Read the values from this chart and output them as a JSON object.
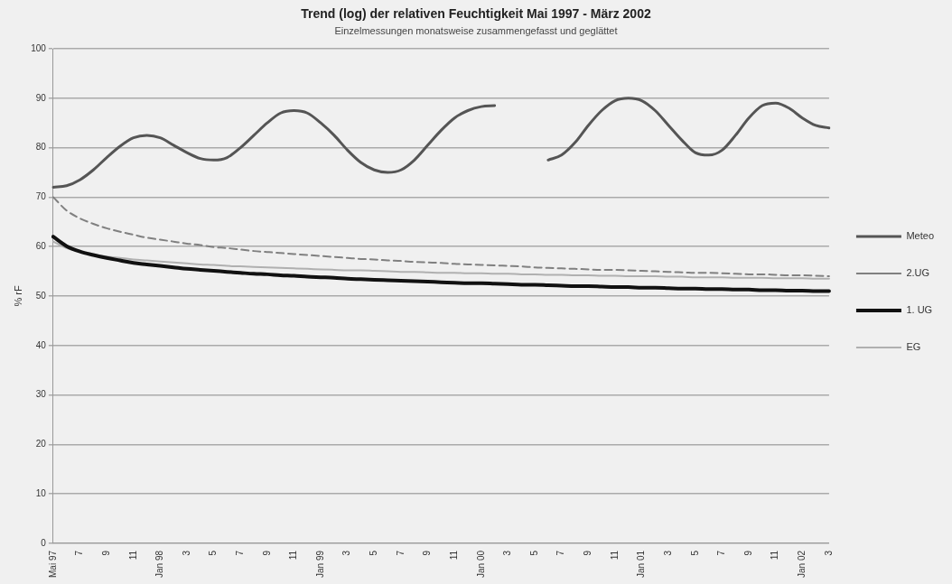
{
  "chart_data": {
    "type": "line",
    "title": "Trend (log) der relativen Feuchtigkeit Mai 1997 - März 2002",
    "subtitle": "Einzelmessungen monatsweise zusammengefasst und geglättet",
    "ylabel": "% rF",
    "categories": [
      "Mai 97",
      null,
      "7",
      null,
      "9",
      null,
      "11",
      null,
      "Jan 98",
      null,
      "3",
      null,
      "5",
      null,
      "7",
      null,
      "9",
      null,
      "11",
      null,
      "Jan 99",
      null,
      "3",
      null,
      "5",
      null,
      "7",
      null,
      "9",
      null,
      "11",
      null,
      "Jan 00",
      null,
      "3",
      null,
      "5",
      null,
      "7",
      null,
      "9",
      null,
      "11",
      null,
      "Jan 01",
      null,
      "3",
      null,
      "5",
      null,
      "7",
      null,
      "9",
      null,
      "11",
      null,
      "Jan 02",
      null,
      "3"
    ],
    "series": [
      {
        "name": "Meteo",
        "color": "#555555",
        "line_style": "solid",
        "values": [
          72,
          72.3,
          73.5,
          75.5,
          78,
          80.3,
          82,
          82.5,
          82,
          80.5,
          79,
          77.8,
          77.5,
          78,
          80,
          82.5,
          85,
          87,
          87.5,
          87,
          85,
          82.5,
          79.5,
          77,
          75.5,
          75,
          75.5,
          77.5,
          80.5,
          83.5,
          86,
          87.5,
          88.3,
          88.5,
          null,
          null,
          null,
          77.5,
          78.5,
          81,
          84.5,
          87.5,
          89.5,
          90,
          89.5,
          87.5,
          84.5,
          81.5,
          79,
          78.5,
          79.5,
          82.5,
          86,
          88.5,
          89,
          88,
          86,
          84.5,
          84
        ]
      },
      {
        "name": "2.UG",
        "color": "#808080",
        "line_style": "dashed",
        "values": [
          70,
          67.3,
          65.7,
          64.6,
          63.7,
          63,
          62.4,
          61.8,
          61.4,
          61,
          60.6,
          60.3,
          59.9,
          59.7,
          59.4,
          59.1,
          58.9,
          58.7,
          58.5,
          58.3,
          58.1,
          57.9,
          57.7,
          57.5,
          57.4,
          57.2,
          57.1,
          56.9,
          56.8,
          56.7,
          56.5,
          56.4,
          56.3,
          56.2,
          56.1,
          56,
          55.8,
          55.7,
          55.6,
          55.5,
          55.4,
          55.3,
          55.3,
          55.2,
          55.1,
          55,
          54.9,
          54.8,
          54.7,
          54.7,
          54.6,
          54.5,
          54.4,
          54.4,
          54.3,
          54.2,
          54.2,
          54.1,
          54
        ]
      },
      {
        "name": "1. UG",
        "color": "#111111",
        "line_style": "solid",
        "values": [
          62,
          60.1,
          59,
          58.3,
          57.7,
          57.2,
          56.7,
          56.4,
          56.1,
          55.8,
          55.5,
          55.3,
          55.1,
          54.9,
          54.7,
          54.5,
          54.4,
          54.2,
          54.1,
          53.9,
          53.8,
          53.7,
          53.5,
          53.4,
          53.3,
          53.2,
          53.1,
          53,
          52.9,
          52.8,
          52.7,
          52.6,
          52.6,
          52.5,
          52.4,
          52.3,
          52.3,
          52.2,
          52.1,
          52,
          52,
          51.9,
          51.8,
          51.8,
          51.7,
          51.7,
          51.6,
          51.5,
          51.5,
          51.4,
          51.4,
          51.3,
          51.3,
          51.2,
          51.2,
          51.1,
          51.1,
          51,
          51
        ]
      },
      {
        "name": "EG",
        "color": "#b0b0b0",
        "line_style": "solid",
        "values": [
          61,
          59.7,
          59,
          58.4,
          58,
          57.7,
          57.4,
          57.2,
          57,
          56.8,
          56.6,
          56.4,
          56.3,
          56.1,
          56,
          55.9,
          55.8,
          55.7,
          55.6,
          55.5,
          55.4,
          55.3,
          55.2,
          55.2,
          55.1,
          55,
          54.9,
          54.9,
          54.8,
          54.7,
          54.7,
          54.6,
          54.6,
          54.5,
          54.5,
          54.4,
          54.4,
          54.3,
          54.3,
          54.2,
          54.2,
          54.1,
          54.1,
          54,
          54,
          54,
          53.9,
          53.9,
          53.8,
          53.8,
          53.8,
          53.7,
          53.7,
          53.7,
          53.6,
          53.6,
          53.6,
          53.5,
          53.5
        ]
      }
    ],
    "ylim": [
      0,
      100
    ],
    "yticks": [
      0,
      10,
      20,
      30,
      40,
      50,
      60,
      70,
      80,
      90,
      100
    ],
    "grid": "y",
    "legend": "right",
    "marker": "none"
  }
}
